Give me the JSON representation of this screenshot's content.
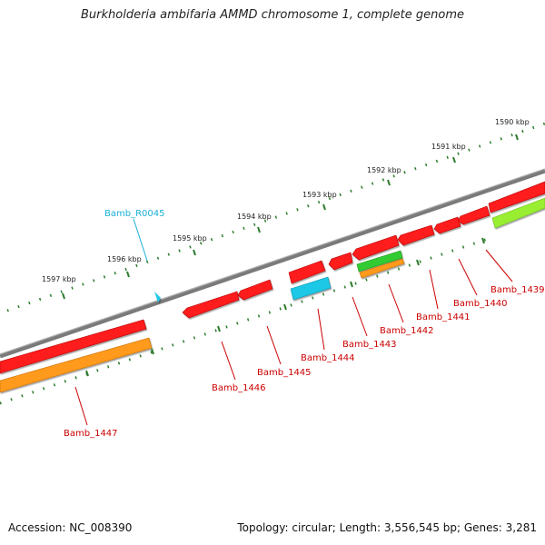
{
  "title": "Burkholderia ambifaria AMMD chromosome 1, complete genome",
  "footer": {
    "accession": "Accession: NC_008390",
    "summary": "Topology: circular; Length: 3,556,545 bp; Genes: 3,281"
  },
  "scale_labels": [
    "1590 kbp",
    "1591 kbp",
    "1592 kbp",
    "1593 kbp",
    "1594 kbp",
    "1595 kbp",
    "1596 kbp",
    "1597 kbp"
  ],
  "gene_labels": [
    "Bamb_R0045",
    "Bamb_1439",
    "Bamb_1440",
    "Bamb_1441",
    "Bamb_1442",
    "Bamb_1443",
    "Bamb_1444",
    "Bamb_1445",
    "Bamb_1446",
    "Bamb_1447"
  ],
  "colors": {
    "backbone": "#808080",
    "cds": "#ff1a1a",
    "rna": "#1ec8e6",
    "misc": "#ff9a1a",
    "green": "#33cc33",
    "light_green": "#99ee33",
    "tick": "#2e7d2e",
    "label_red": "#cc0000",
    "label_cyan": "#1ab0d8"
  }
}
